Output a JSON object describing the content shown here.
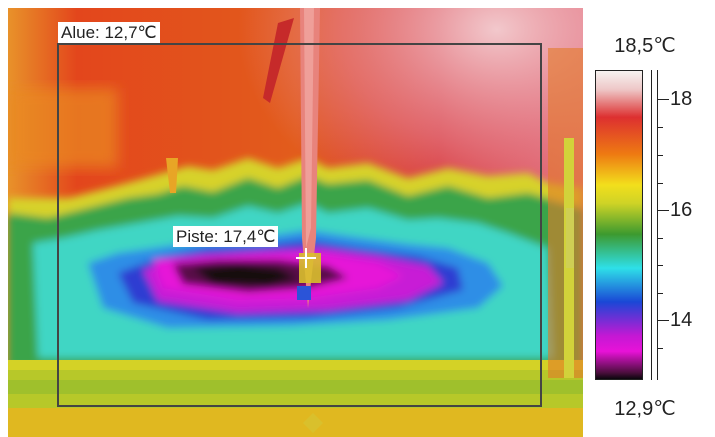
{
  "image": {
    "area_label": "Alue: 12,7℃",
    "spot_label": "Piste: 17,4℃"
  },
  "scale": {
    "max_label": "18,5℃",
    "min_label": "12,9℃",
    "tick_labels": [
      "18",
      "16",
      "14"
    ]
  },
  "colors": {
    "palette": "iron-rainbow",
    "hot": "#dd3030",
    "warm": "#ee7a12",
    "mid": "#3d9a2f",
    "cool": "#2ee0e8",
    "cold": "#c418d4"
  }
}
